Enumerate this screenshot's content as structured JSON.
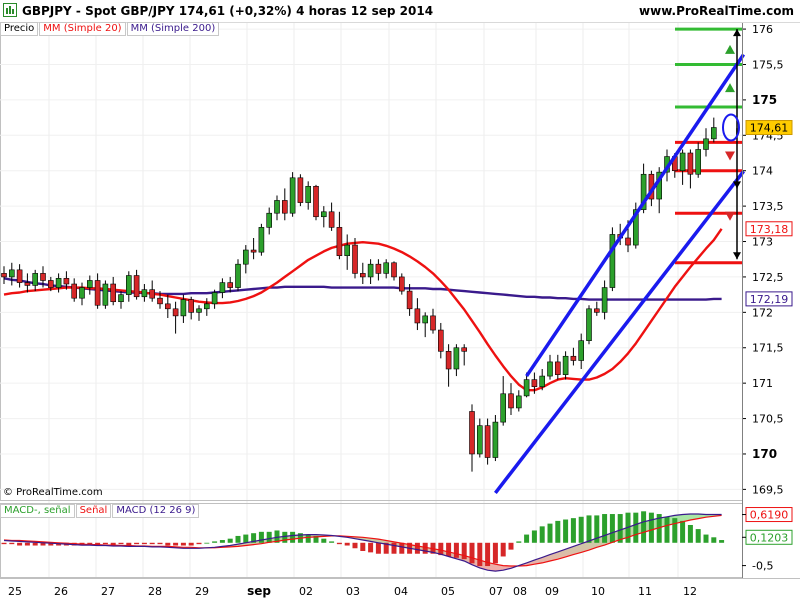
{
  "header": {
    "title": "GBPJPY - Spot GBP/JPY    174,61 (+0,32%)    4 horas   12 sep 2014",
    "site": "www.ProRealTime.com"
  },
  "legend": {
    "precio": "Precio",
    "ma20": "MM (Simple 20)",
    "ma200": "MM (Simple 200)"
  },
  "macd_legend": {
    "signal": "MACD-, señal",
    "senal": "Señal",
    "macd": "MACD (12 26 9)"
  },
  "copyright": "© ProRealTime.com",
  "colors": {
    "up": "#2ca02c",
    "down": "#d62728",
    "ma20": "#ee1111",
    "ma200": "#3a1a8c",
    "channel": "#1a1aee",
    "green_level": "#33bb33",
    "red_level": "#ee1111"
  },
  "chart_data": {
    "type": "candlestick",
    "y_axis": {
      "ticks": [
        "176",
        "175,5",
        "175",
        "174,5",
        "174",
        "173,5",
        "173",
        "172,5",
        "172",
        "171,5",
        "171",
        "170,5",
        "170",
        "169,5"
      ],
      "tick_values": [
        176,
        175.5,
        175,
        174.5,
        174,
        173.5,
        173,
        172.5,
        172,
        171.5,
        171,
        170.5,
        170,
        169.5
      ],
      "bold_ticks": [
        "175",
        "170"
      ],
      "range": [
        169.35,
        176.1
      ]
    },
    "price_tags": [
      {
        "label": "174,61",
        "value": 174.61,
        "style": "current"
      },
      {
        "label": "173,18",
        "value": 173.18,
        "style": "ma20"
      },
      {
        "label": "172,19",
        "value": 172.19,
        "style": "ma200"
      }
    ],
    "x_axis": {
      "labels": [
        "25",
        "26",
        "27",
        "28",
        "29",
        "sep",
        "02",
        "03",
        "04",
        "05",
        "07",
        "08",
        "09",
        "10",
        "11",
        "12"
      ],
      "bold_labels": [
        "sep"
      ]
    },
    "candles": [
      [
        172.55,
        172.65,
        172.4,
        172.5
      ],
      [
        172.5,
        172.7,
        172.38,
        172.6
      ],
      [
        172.6,
        172.68,
        172.35,
        172.42
      ],
      [
        172.42,
        172.55,
        172.28,
        172.38
      ],
      [
        172.38,
        172.6,
        172.3,
        172.55
      ],
      [
        172.55,
        172.65,
        172.35,
        172.45
      ],
      [
        172.45,
        172.5,
        172.3,
        172.35
      ],
      [
        172.35,
        172.55,
        172.28,
        172.48
      ],
      [
        172.48,
        172.58,
        172.32,
        172.4
      ],
      [
        172.4,
        172.48,
        172.15,
        172.2
      ],
      [
        172.2,
        172.42,
        172.1,
        172.35
      ],
      [
        172.35,
        172.52,
        172.25,
        172.45
      ],
      [
        172.45,
        172.55,
        172.05,
        172.1
      ],
      [
        172.1,
        172.45,
        172.05,
        172.4
      ],
      [
        172.4,
        172.5,
        172.1,
        172.15
      ],
      [
        172.15,
        172.3,
        172.05,
        172.25
      ],
      [
        172.25,
        172.58,
        172.15,
        172.52
      ],
      [
        172.52,
        172.6,
        172.18,
        172.22
      ],
      [
        172.22,
        172.4,
        172.15,
        172.32
      ],
      [
        172.32,
        172.45,
        172.15,
        172.2
      ],
      [
        172.2,
        172.3,
        172.05,
        172.12
      ],
      [
        172.12,
        172.25,
        171.92,
        172.05
      ],
      [
        172.05,
        172.15,
        171.7,
        171.95
      ],
      [
        171.95,
        172.25,
        171.85,
        172.18
      ],
      [
        172.18,
        172.22,
        171.9,
        172.0
      ],
      [
        172.0,
        172.1,
        171.88,
        172.05
      ],
      [
        172.05,
        172.2,
        171.95,
        172.12
      ],
      [
        172.12,
        172.32,
        172.05,
        172.28
      ],
      [
        172.28,
        172.48,
        172.2,
        172.42
      ],
      [
        172.42,
        172.5,
        172.28,
        172.35
      ],
      [
        172.35,
        172.75,
        172.3,
        172.68
      ],
      [
        172.68,
        172.95,
        172.55,
        172.88
      ],
      [
        172.88,
        173.05,
        172.75,
        172.85
      ],
      [
        172.85,
        173.25,
        172.8,
        173.2
      ],
      [
        173.2,
        173.48,
        173.1,
        173.4
      ],
      [
        173.4,
        173.65,
        173.3,
        173.58
      ],
      [
        173.58,
        173.75,
        173.3,
        173.4
      ],
      [
        173.4,
        173.98,
        173.35,
        173.9
      ],
      [
        173.9,
        173.95,
        173.5,
        173.55
      ],
      [
        173.55,
        173.85,
        173.45,
        173.78
      ],
      [
        173.78,
        173.8,
        173.3,
        173.35
      ],
      [
        173.35,
        173.5,
        173.2,
        173.42
      ],
      [
        173.42,
        173.55,
        173.15,
        173.2
      ],
      [
        173.2,
        173.42,
        172.75,
        172.8
      ],
      [
        172.8,
        173.1,
        172.6,
        172.95
      ],
      [
        172.95,
        173.05,
        172.48,
        172.55
      ],
      [
        172.55,
        172.7,
        172.4,
        172.5
      ],
      [
        172.5,
        172.75,
        172.4,
        172.68
      ],
      [
        172.68,
        172.75,
        172.45,
        172.55
      ],
      [
        172.55,
        172.75,
        172.48,
        172.7
      ],
      [
        172.7,
        172.72,
        172.45,
        172.5
      ],
      [
        172.5,
        172.55,
        172.25,
        172.3
      ],
      [
        172.3,
        172.4,
        171.95,
        172.05
      ],
      [
        172.05,
        172.2,
        171.75,
        171.85
      ],
      [
        171.85,
        172.0,
        171.65,
        171.95
      ],
      [
        171.95,
        172.05,
        171.7,
        171.75
      ],
      [
        171.75,
        171.85,
        171.35,
        171.45
      ],
      [
        171.45,
        171.55,
        170.95,
        171.2
      ],
      [
        171.2,
        171.55,
        171.1,
        171.5
      ],
      [
        171.5,
        171.55,
        171.25,
        171.45
      ],
      [
        170.6,
        170.7,
        169.75,
        170.0
      ],
      [
        170.0,
        170.5,
        169.95,
        170.4
      ],
      [
        170.4,
        170.5,
        169.85,
        169.95
      ],
      [
        169.95,
        170.55,
        169.9,
        170.45
      ],
      [
        170.45,
        171.1,
        170.4,
        170.85
      ],
      [
        170.85,
        171.0,
        170.55,
        170.65
      ],
      [
        170.65,
        170.9,
        170.6,
        170.82
      ],
      [
        170.82,
        171.15,
        170.8,
        171.05
      ],
      [
        171.05,
        171.15,
        170.85,
        170.95
      ],
      [
        170.95,
        171.2,
        170.9,
        171.1
      ],
      [
        171.1,
        171.4,
        171.05,
        171.3
      ],
      [
        171.3,
        171.4,
        171.05,
        171.12
      ],
      [
        171.12,
        171.45,
        171.05,
        171.38
      ],
      [
        171.38,
        171.5,
        171.25,
        171.32
      ],
      [
        171.32,
        171.7,
        171.2,
        171.6
      ],
      [
        171.6,
        172.1,
        171.55,
        172.05
      ],
      [
        172.05,
        172.15,
        171.95,
        172.0
      ],
      [
        172.0,
        172.45,
        171.9,
        172.35
      ],
      [
        172.35,
        173.2,
        172.3,
        173.1
      ],
      [
        173.1,
        173.25,
        172.95,
        173.05
      ],
      [
        173.05,
        173.3,
        172.85,
        172.95
      ],
      [
        172.95,
        173.55,
        172.9,
        173.45
      ],
      [
        173.45,
        174.1,
        173.4,
        173.95
      ],
      [
        173.95,
        174.0,
        173.5,
        173.6
      ],
      [
        173.6,
        174.05,
        173.4,
        173.98
      ],
      [
        173.98,
        174.3,
        173.85,
        174.2
      ],
      [
        174.2,
        174.25,
        173.9,
        174.0
      ],
      [
        174.0,
        174.3,
        173.8,
        174.25
      ],
      [
        174.25,
        174.3,
        173.75,
        173.95
      ],
      [
        173.95,
        174.4,
        173.9,
        174.3
      ],
      [
        174.3,
        174.6,
        174.2,
        174.45
      ],
      [
        174.45,
        174.75,
        174.4,
        174.61
      ]
    ],
    "ma20": [
      172.25,
      172.27,
      172.28,
      172.3,
      172.31,
      172.32,
      172.33,
      172.34,
      172.35,
      172.35,
      172.35,
      172.34,
      172.34,
      172.33,
      172.32,
      172.31,
      172.3,
      172.29,
      172.28,
      172.26,
      172.25,
      172.23,
      172.21,
      172.19,
      172.17,
      172.15,
      172.14,
      172.13,
      172.13,
      172.14,
      172.16,
      172.19,
      172.23,
      172.28,
      172.35,
      172.42,
      172.5,
      172.58,
      172.66,
      172.74,
      172.8,
      172.86,
      172.91,
      172.94,
      172.97,
      172.98,
      172.99,
      172.98,
      172.97,
      172.94,
      172.9,
      172.85,
      172.79,
      172.72,
      172.64,
      172.55,
      172.44,
      172.32,
      172.18,
      172.04,
      171.88,
      171.72,
      171.55,
      171.39,
      171.24,
      171.1,
      170.98,
      170.9,
      170.9,
      170.94,
      171.0,
      171.05,
      171.07,
      171.06,
      171.05,
      171.05,
      171.08,
      171.13,
      171.2,
      171.3,
      171.42,
      171.56,
      171.72,
      171.88,
      172.04,
      172.2,
      172.36,
      172.5,
      172.64,
      172.77,
      172.9,
      173.02,
      173.18
    ],
    "ma200": [
      172.48,
      172.46,
      172.45,
      172.43,
      172.41,
      172.4,
      172.38,
      172.37,
      172.36,
      172.35,
      172.34,
      172.33,
      172.32,
      172.31,
      172.3,
      172.29,
      172.28,
      172.28,
      172.27,
      172.27,
      172.26,
      172.26,
      172.26,
      172.26,
      172.27,
      172.27,
      172.27,
      172.28,
      172.29,
      172.3,
      172.31,
      172.32,
      172.33,
      172.34,
      172.35,
      172.35,
      172.36,
      172.36,
      172.36,
      172.36,
      172.36,
      172.36,
      172.35,
      172.35,
      172.35,
      172.35,
      172.35,
      172.35,
      172.35,
      172.35,
      172.35,
      172.34,
      172.34,
      172.34,
      172.34,
      172.33,
      172.33,
      172.32,
      172.31,
      172.3,
      172.29,
      172.28,
      172.27,
      172.26,
      172.25,
      172.24,
      172.23,
      172.22,
      172.22,
      172.21,
      172.21,
      172.2,
      172.2,
      172.19,
      172.19,
      172.18,
      172.18,
      172.18,
      172.18,
      172.18,
      172.18,
      172.18,
      172.18,
      172.18,
      172.18,
      172.18,
      172.18,
      172.18,
      172.18,
      172.18,
      172.18,
      172.19,
      172.19
    ],
    "channel_lines": [
      {
        "from": [
          67,
          171.1
        ],
        "to": [
          92,
          175.5
        ]
      },
      {
        "from": [
          63,
          169.45
        ],
        "to": [
          92,
          173.85
        ]
      }
    ],
    "green_levels": [
      176.0,
      175.5,
      174.9
    ],
    "red_levels": [
      174.4,
      174.0,
      173.4,
      172.7
    ],
    "arrows": [
      {
        "x_value": 175.9,
        "from": 174.5,
        "to": 176.0
      },
      {
        "x_value": 173.8,
        "from": 174.6,
        "to": 173.75
      },
      {
        "x_value": 172.8,
        "from": 173.85,
        "to": 172.75
      }
    ],
    "macd_panel": {
      "ticks": [
        "0,6190",
        "0,1203",
        "-0,5"
      ],
      "tick_values": [
        0.619,
        0.1203,
        -0.5
      ],
      "range": [
        -0.75,
        0.85
      ],
      "macd": [
        0.05,
        0.04,
        0.03,
        0.02,
        0.01,
        0.0,
        -0.01,
        -0.02,
        -0.03,
        -0.04,
        -0.05,
        -0.05,
        -0.06,
        -0.06,
        -0.07,
        -0.07,
        -0.08,
        -0.08,
        -0.08,
        -0.09,
        -0.09,
        -0.1,
        -0.11,
        -0.12,
        -0.12,
        -0.12,
        -0.11,
        -0.1,
        -0.08,
        -0.06,
        -0.03,
        0.0,
        0.03,
        0.06,
        0.09,
        0.12,
        0.14,
        0.16,
        0.17,
        0.18,
        0.18,
        0.17,
        0.16,
        0.14,
        0.12,
        0.09,
        0.06,
        0.03,
        0.0,
        -0.03,
        -0.06,
        -0.09,
        -0.12,
        -0.15,
        -0.18,
        -0.21,
        -0.25,
        -0.3,
        -0.35,
        -0.4,
        -0.48,
        -0.55,
        -0.6,
        -0.62,
        -0.6,
        -0.56,
        -0.5,
        -0.44,
        -0.38,
        -0.32,
        -0.26,
        -0.2,
        -0.14,
        -0.08,
        -0.02,
        0.04,
        0.1,
        0.16,
        0.22,
        0.28,
        0.34,
        0.4,
        0.46,
        0.5,
        0.54,
        0.57,
        0.6,
        0.62,
        0.63,
        0.63,
        0.62,
        0.62,
        0.62
      ],
      "signal": [
        0.06,
        0.05,
        0.05,
        0.04,
        0.03,
        0.02,
        0.01,
        0.0,
        -0.01,
        -0.02,
        -0.03,
        -0.04,
        -0.04,
        -0.05,
        -0.05,
        -0.06,
        -0.06,
        -0.07,
        -0.07,
        -0.08,
        -0.08,
        -0.08,
        -0.09,
        -0.1,
        -0.1,
        -0.11,
        -0.11,
        -0.11,
        -0.1,
        -0.09,
        -0.08,
        -0.06,
        -0.04,
        -0.02,
        0.01,
        0.03,
        0.06,
        0.08,
        0.1,
        0.12,
        0.13,
        0.14,
        0.15,
        0.15,
        0.14,
        0.13,
        0.12,
        0.1,
        0.08,
        0.05,
        0.02,
        -0.01,
        -0.04,
        -0.07,
        -0.1,
        -0.13,
        -0.16,
        -0.2,
        -0.24,
        -0.28,
        -0.33,
        -0.38,
        -0.43,
        -0.47,
        -0.5,
        -0.51,
        -0.51,
        -0.5,
        -0.47,
        -0.44,
        -0.4,
        -0.36,
        -0.31,
        -0.26,
        -0.21,
        -0.16,
        -0.1,
        -0.05,
        0.01,
        0.07,
        0.12,
        0.18,
        0.23,
        0.28,
        0.33,
        0.38,
        0.42,
        0.46,
        0.5,
        0.53,
        0.56,
        0.58,
        0.6
      ]
    }
  }
}
